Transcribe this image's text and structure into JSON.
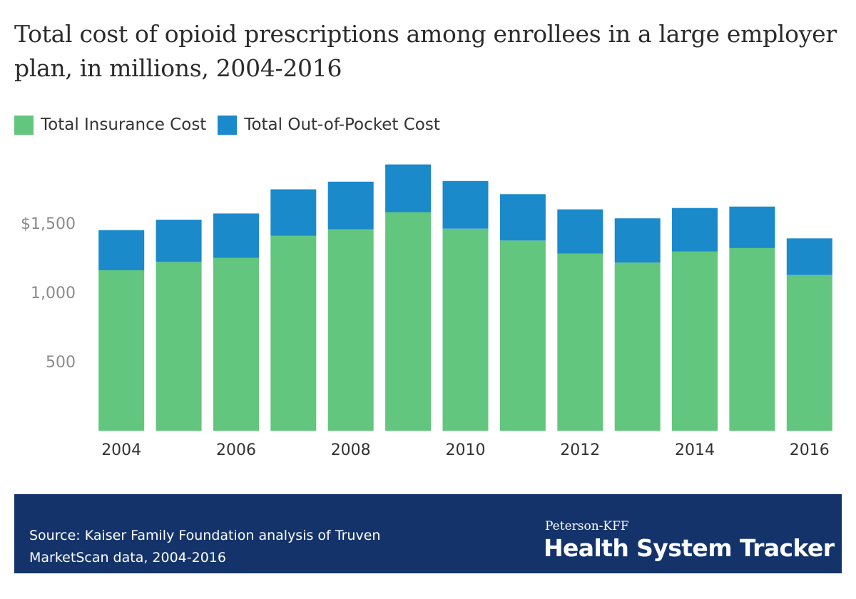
{
  "chart_data": {
    "type": "bar",
    "stacked": true,
    "title": "Total cost of opioid prescriptions among enrollees in a large employer plan, in millions, 2004-2016",
    "xlabel": "",
    "ylabel": "",
    "ylim": [
      0,
      2000
    ],
    "grid": false,
    "legend_position": "top-left",
    "categories": [
      "2004",
      "2005",
      "2006",
      "2007",
      "2008",
      "2009",
      "2010",
      "2011",
      "2012",
      "2013",
      "2014",
      "2015",
      "2016"
    ],
    "x_tick_labels": [
      "2004",
      "",
      "2006",
      "",
      "2008",
      "",
      "2010",
      "",
      "2012",
      "",
      "2014",
      "",
      "2016"
    ],
    "y_ticks": [
      {
        "value": 500,
        "label": "500"
      },
      {
        "value": 1000,
        "label": "1,000"
      },
      {
        "value": 1500,
        "label": "$1,500"
      }
    ],
    "series": [
      {
        "name": "Total Insurance Cost",
        "color": "#63c67f",
        "values": [
          1160,
          1220,
          1250,
          1410,
          1455,
          1580,
          1460,
          1375,
          1280,
          1215,
          1295,
          1320,
          1125
        ]
      },
      {
        "name": "Total Out-of-Pocket Cost",
        "color": "#1a8acb",
        "values": [
          290,
          305,
          320,
          335,
          345,
          345,
          345,
          335,
          320,
          320,
          315,
          300,
          265
        ]
      }
    ]
  },
  "footer": {
    "source": "Source: Kaiser Family Foundation analysis of Truven MarketScan data, 2004-2016",
    "brand_small": "Peterson-KFF",
    "brand_large": "Health System Tracker",
    "background_color": "#14336b"
  }
}
